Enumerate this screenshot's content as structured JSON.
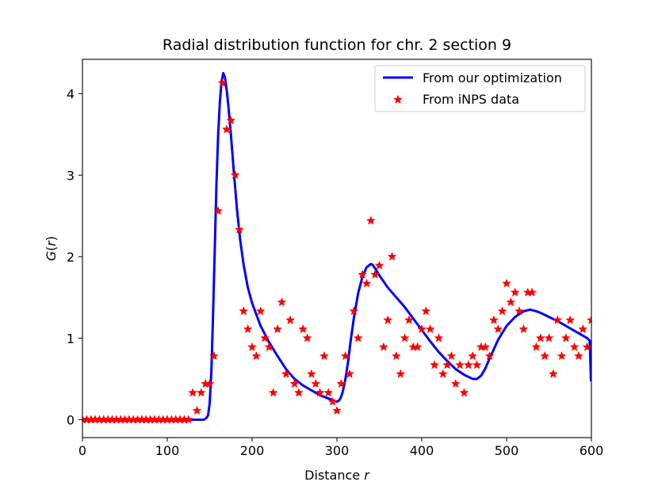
{
  "chart_data": {
    "type": "line",
    "title": "Radial distribution function for chr. 2 section 9",
    "xlabel_prefix": "Distance",
    "xlabel_var": "r",
    "ylabel_var_g": "G",
    "ylabel_open": "(",
    "ylabel_var_r": "r",
    "ylabel_close": ")",
    "xlim": [
      0,
      600
    ],
    "ylim": [
      -0.22,
      4.42
    ],
    "xticks": [
      0,
      100,
      200,
      300,
      400,
      500,
      600
    ],
    "yticks": [
      0,
      1,
      2,
      3,
      4
    ],
    "legend_position": "top-right",
    "colors": {
      "line": "#0000ff",
      "markers": "#ff0000"
    },
    "series": [
      {
        "name": "From our optimization",
        "kind": "line",
        "x": [
          0,
          100,
          130,
          138,
          143,
          146,
          148,
          150,
          152,
          154,
          156,
          158,
          160,
          162,
          164,
          166,
          168,
          170,
          172,
          175,
          178,
          182,
          186,
          190,
          195,
          200,
          210,
          220,
          230,
          240,
          250,
          260,
          270,
          280,
          290,
          300,
          303,
          305,
          307,
          310,
          313,
          316,
          320,
          325,
          330,
          335,
          340,
          342,
          346,
          350,
          360,
          370,
          380,
          390,
          400,
          410,
          420,
          430,
          440,
          450,
          460,
          465,
          470,
          475,
          480,
          490,
          500,
          510,
          520,
          528,
          535,
          540,
          550,
          560,
          570,
          580,
          590,
          595,
          598,
          599.5
        ],
        "y": [
          0,
          0,
          0,
          0,
          0.0,
          0.02,
          0.05,
          0.2,
          0.6,
          1.3,
          2.1,
          2.9,
          3.5,
          3.9,
          4.15,
          4.25,
          4.2,
          4.05,
          3.85,
          3.5,
          3.1,
          2.6,
          2.2,
          1.9,
          1.62,
          1.43,
          1.15,
          0.95,
          0.78,
          0.62,
          0.5,
          0.42,
          0.36,
          0.3,
          0.26,
          0.22,
          0.24,
          0.28,
          0.35,
          0.5,
          0.7,
          0.95,
          1.25,
          1.55,
          1.75,
          1.87,
          1.91,
          1.9,
          1.84,
          1.77,
          1.62,
          1.5,
          1.38,
          1.24,
          1.1,
          0.96,
          0.83,
          0.72,
          0.62,
          0.55,
          0.5,
          0.5,
          0.54,
          0.63,
          0.75,
          0.98,
          1.15,
          1.26,
          1.33,
          1.35,
          1.33,
          1.31,
          1.26,
          1.21,
          1.15,
          1.09,
          1.03,
          1.0,
          0.97,
          0.47
        ]
      },
      {
        "name": "From iNPS data",
        "kind": "scatter",
        "x": [
          0,
          5,
          10,
          15,
          20,
          25,
          30,
          35,
          40,
          45,
          50,
          55,
          60,
          65,
          70,
          75,
          80,
          85,
          90,
          95,
          100,
          105,
          110,
          115,
          120,
          125,
          130,
          135,
          140,
          145,
          150,
          155,
          160,
          165,
          170,
          175,
          180,
          185,
          190,
          195,
          200,
          205,
          210,
          215,
          220,
          225,
          230,
          235,
          240,
          245,
          250,
          255,
          260,
          265,
          270,
          275,
          280,
          285,
          290,
          295,
          300,
          305,
          310,
          315,
          320,
          325,
          330,
          335,
          340,
          345,
          350,
          355,
          360,
          365,
          370,
          375,
          380,
          385,
          390,
          395,
          400,
          405,
          410,
          415,
          420,
          425,
          430,
          435,
          440,
          445,
          450,
          455,
          460,
          465,
          470,
          475,
          480,
          485,
          490,
          495,
          500,
          505,
          510,
          515,
          520,
          525,
          530,
          535,
          540,
          545,
          550,
          555,
          560,
          565,
          570,
          575,
          580,
          585,
          590,
          595,
          600
        ],
        "y": [
          0,
          0,
          0,
          0,
          0,
          0,
          0,
          0,
          0,
          0,
          0,
          0,
          0,
          0,
          0,
          0,
          0,
          0,
          0,
          0,
          0,
          0,
          0,
          0,
          0,
          0,
          0.33,
          0.11,
          0.33,
          0.44,
          0.44,
          0.78,
          2.56,
          4.13,
          3.56,
          3.67,
          3.0,
          2.33,
          1.33,
          1.11,
          0.89,
          0.78,
          1.33,
          1.0,
          0.89,
          0.33,
          1.11,
          1.44,
          0.56,
          1.22,
          0.44,
          0.33,
          1.11,
          1.0,
          0.56,
          0.44,
          0.33,
          0.78,
          0.33,
          0.22,
          0.11,
          0.44,
          0.78,
          0.56,
          1.33,
          1.0,
          1.78,
          1.67,
          2.44,
          1.78,
          1.89,
          0.89,
          1.22,
          2.0,
          0.78,
          0.56,
          1.0,
          1.22,
          0.89,
          0.89,
          1.11,
          1.33,
          1.11,
          0.67,
          1.0,
          0.56,
          0.67,
          0.78,
          0.44,
          0.67,
          0.33,
          0.67,
          0.78,
          0.67,
          0.89,
          0.89,
          0.78,
          1.22,
          1.11,
          1.33,
          1.67,
          1.44,
          1.56,
          1.33,
          1.11,
          1.56,
          1.56,
          0.89,
          1.0,
          0.78,
          1.0,
          0.56,
          1.22,
          0.78,
          1.0,
          1.22,
          0.89,
          0.78,
          1.11,
          0.89,
          1.22
        ]
      }
    ]
  }
}
